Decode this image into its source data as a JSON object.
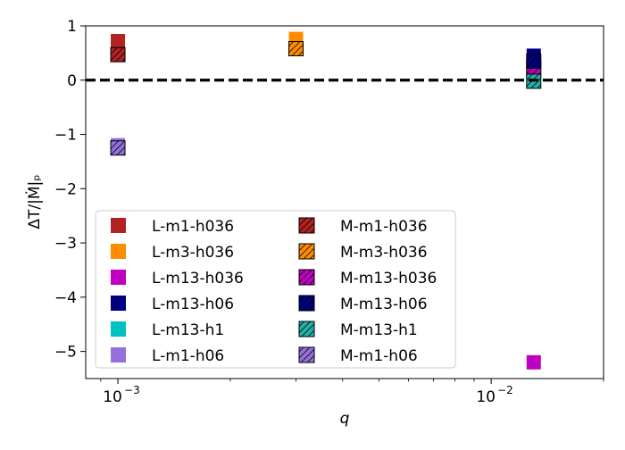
{
  "chart_data": {
    "type": "scatter",
    "xlabel": "q",
    "ylabel": "ΔT/|Ṁ|ₚ",
    "xscale": "log",
    "xlim": [
      0.00082,
      0.02
    ],
    "ylim": [
      -5.5,
      1.0
    ],
    "xticks": [
      {
        "value": 0.001,
        "base": "10",
        "exp": "−3"
      },
      {
        "value": 0.01,
        "base": "10",
        "exp": "−2"
      }
    ],
    "yticks": [
      {
        "value": 1,
        "label": "1"
      },
      {
        "value": 0,
        "label": "0"
      },
      {
        "value": -1,
        "label": "−1"
      },
      {
        "value": -2,
        "label": "−2"
      },
      {
        "value": -3,
        "label": "−3"
      },
      {
        "value": -4,
        "label": "−4"
      },
      {
        "value": -5,
        "label": "−5"
      }
    ],
    "reference_line": {
      "y": 0,
      "style": "dashed",
      "color": "#000000"
    },
    "grid": false,
    "legend_position": "lower-left",
    "legend_columns": 2,
    "series": [
      {
        "name": "L-m1-h036",
        "color": "#b22222",
        "hatched": false,
        "points": [
          {
            "x": 0.001,
            "y": 0.72
          }
        ]
      },
      {
        "name": "L-m3-h036",
        "color": "#ff8c00",
        "hatched": false,
        "points": [
          {
            "x": 0.003,
            "y": 0.76
          }
        ]
      },
      {
        "name": "L-m13-h036",
        "color": "#c000c0",
        "hatched": false,
        "points": [
          {
            "x": 0.013,
            "y": -5.2
          }
        ]
      },
      {
        "name": "L-m13-h06",
        "color": "#000080",
        "hatched": false,
        "points": [
          {
            "x": 0.013,
            "y": 0.45
          }
        ]
      },
      {
        "name": "L-m13-h1",
        "color": "#00c0c0",
        "hatched": false,
        "points": [
          {
            "x": 0.013,
            "y": 0.0
          }
        ]
      },
      {
        "name": "L-m1-h06",
        "color": "#9370db",
        "hatched": false,
        "points": [
          {
            "x": 0.001,
            "y": -1.2
          }
        ]
      },
      {
        "name": "M-m1-h036",
        "color": "#b22222",
        "hatched": true,
        "points": [
          {
            "x": 0.001,
            "y": 0.47
          }
        ]
      },
      {
        "name": "M-m3-h036",
        "color": "#ff8c00",
        "hatched": true,
        "points": [
          {
            "x": 0.003,
            "y": 0.58
          }
        ]
      },
      {
        "name": "M-m13-h036",
        "color": "#c000c0",
        "hatched": true,
        "points": [
          {
            "x": 0.013,
            "y": 0.22
          }
        ]
      },
      {
        "name": "M-m13-h06",
        "color": "#000080",
        "hatched": true,
        "points": [
          {
            "x": 0.013,
            "y": 0.35
          }
        ]
      },
      {
        "name": "M-m13-h1",
        "color": "#20b2aa",
        "hatched": true,
        "points": [
          {
            "x": 0.013,
            "y": -0.02
          }
        ]
      },
      {
        "name": "M-m1-h06",
        "color": "#9370db",
        "hatched": true,
        "points": [
          {
            "x": 0.001,
            "y": -1.25
          }
        ]
      }
    ]
  }
}
